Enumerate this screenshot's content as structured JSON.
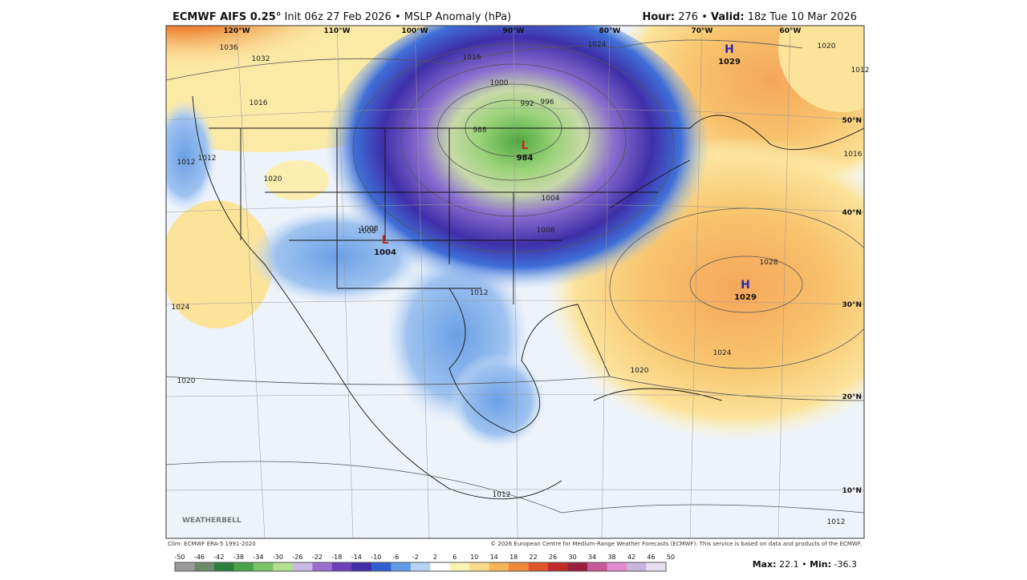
{
  "header": {
    "model": "ECMWF AIFS 0.25°",
    "init": "Init 06z 27 Feb 2026",
    "separator": "•",
    "field": "MSLP Anomaly (hPa)",
    "hour_label": "Hour:",
    "hour": "276",
    "valid_label": "Valid:",
    "valid": "18z Tue 10 Mar 2026"
  },
  "map": {
    "longitudes": [
      "120°W",
      "110°W",
      "100°W",
      "90°W",
      "80°W",
      "70°W",
      "60°W"
    ],
    "latitudes": [
      "50°N",
      "40°N",
      "30°N",
      "20°N",
      "10°N"
    ],
    "contour_labels": [
      "1036",
      "1032",
      "1016",
      "1016",
      "1024",
      "1020",
      "1008",
      "1000",
      "992",
      "996",
      "988",
      "1020",
      "1012",
      "1008",
      "1004",
      "1008",
      "1012",
      "1028",
      "1024",
      "1020",
      "1024",
      "1020",
      "1012",
      "1012",
      "1016",
      "1012",
      "1012"
    ],
    "centers": [
      {
        "symbol": "H",
        "pressure": "1029"
      },
      {
        "symbol": "L",
        "pressure": "984"
      },
      {
        "symbol": "L",
        "pressure": "1004"
      },
      {
        "symbol": "H",
        "pressure": "1029"
      }
    ],
    "logo": "WEATHERBELL"
  },
  "footer": {
    "climo": "Clim: ECMWF ERA-5 1991-2020",
    "copyright": "© 2026 European Centre for Medium-Range Weather Forecasts (ECMWF). This service is based on data and products of the ECMWF.",
    "max_label": "Max:",
    "max": "22.1",
    "min_label": "Min:",
    "min": "-36.3"
  },
  "colorbar": {
    "ticks": [
      -50,
      -46,
      -42,
      -38,
      -34,
      -30,
      -26,
      -22,
      -18,
      -14,
      -10,
      -6,
      -2,
      2,
      6,
      10,
      14,
      18,
      22,
      26,
      30,
      34,
      38,
      42,
      46,
      50
    ],
    "colors": [
      "#9a9a9a",
      "#6f8a6a",
      "#2e7d3a",
      "#4aa34a",
      "#7cc36a",
      "#b3df8e",
      "#c9b9e6",
      "#9a6fd0",
      "#6a3fb8",
      "#3f2fa8",
      "#2f5fd0",
      "#5f9be6",
      "#b5d3f3",
      "#ffffff",
      "#fbf3b0",
      "#fbd98a",
      "#f7b458",
      "#f08a3a",
      "#e0552a",
      "#c02a2a",
      "#9a1f3f",
      "#c85a9a",
      "#e08ad0",
      "#c9b4e0",
      "#e8e0f0"
    ]
  }
}
